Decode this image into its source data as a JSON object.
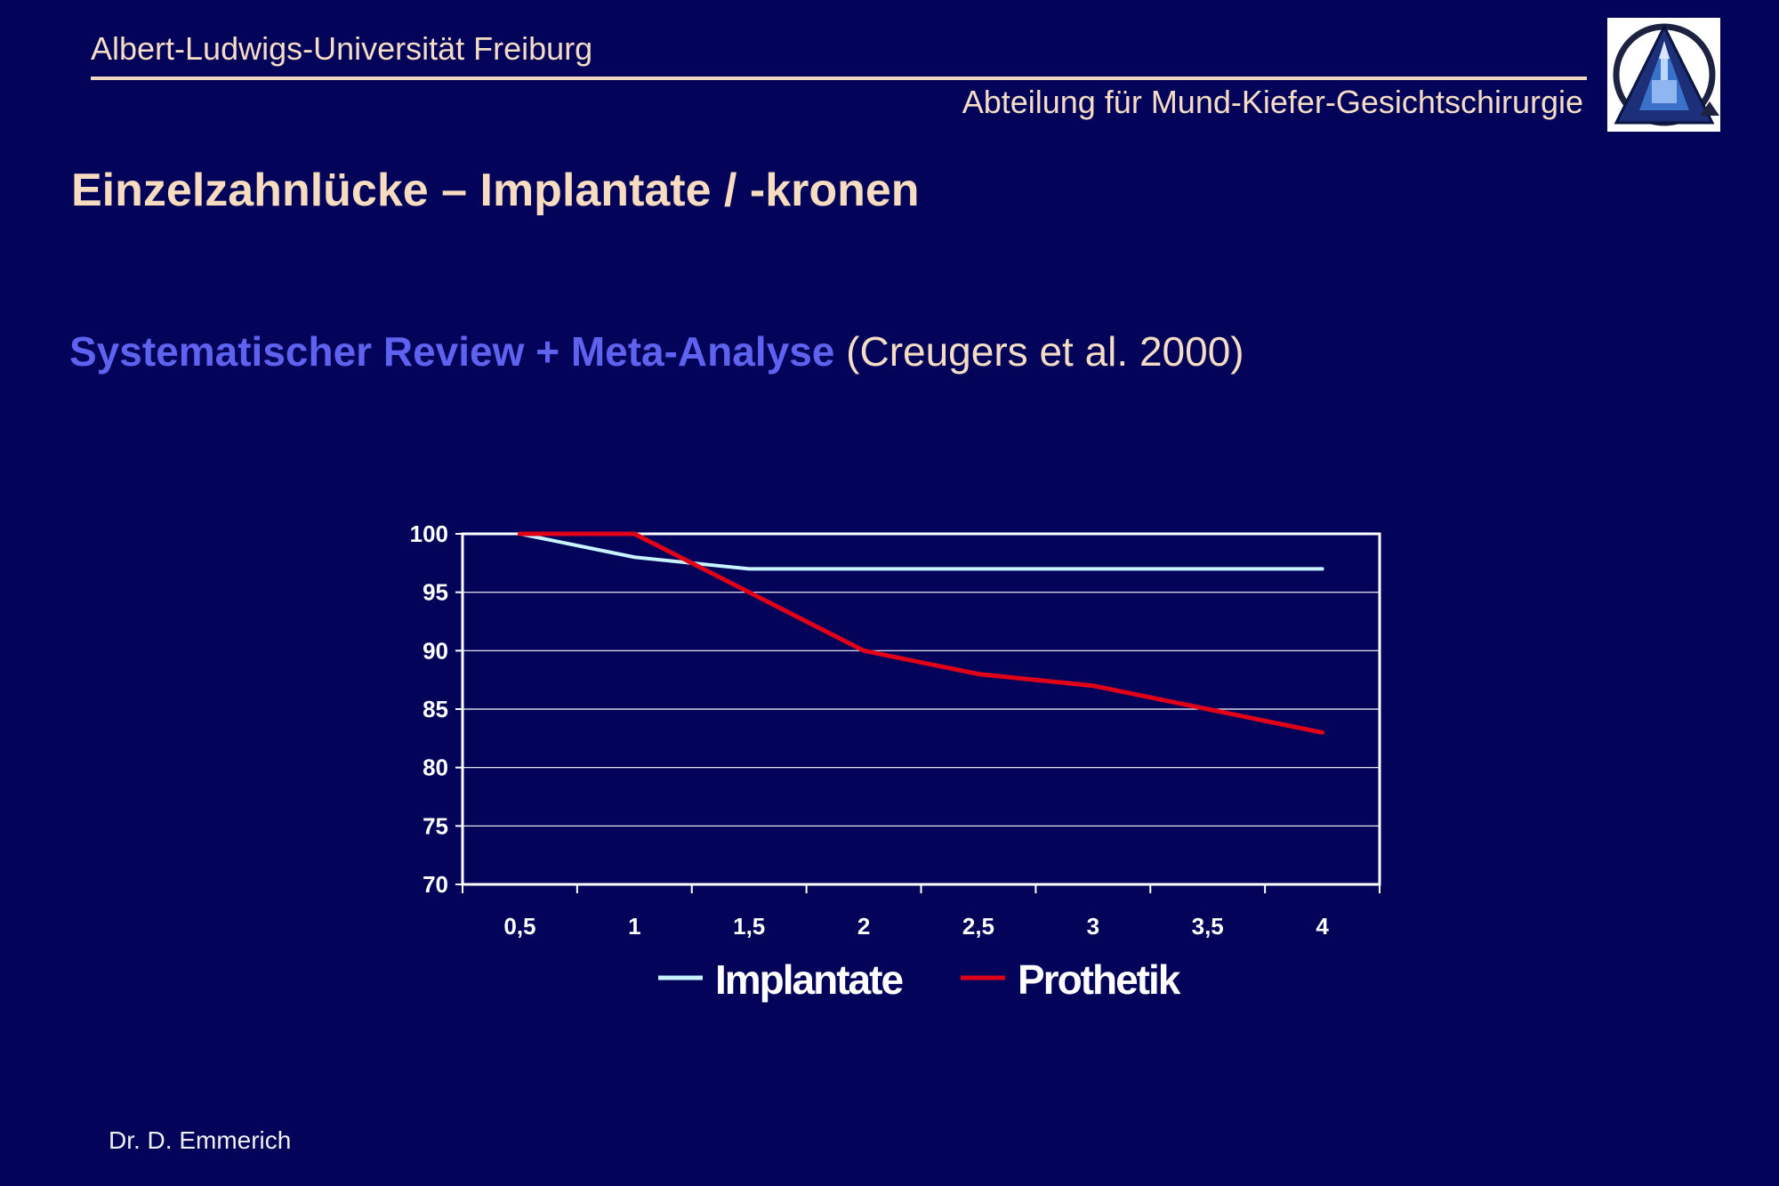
{
  "header": {
    "university": "Albert-Ludwigs-Universität Freiburg",
    "department": "Abteilung für Mund-Kiefer-Gesichtschirurgie"
  },
  "slide": {
    "title": "Einzelzahnlücke – Implantate / -kronen",
    "subtitle_main": "Systematischer Review + Meta-Analyse",
    "subtitle_citation": "(Creugers et al. 2000)"
  },
  "footer": {
    "author": "Dr. D. Emmerich"
  },
  "colors": {
    "background": "#03035a",
    "accent_text": "#f5dcc4",
    "subtitle_blue": "#5e62ee",
    "implantate_line": "#c8f4ff",
    "prothetik_line": "#e00018"
  },
  "logo": {
    "icon": "university-cathedral-logo-icon"
  },
  "chart_data": {
    "type": "line",
    "categories": [
      "0,5",
      "1",
      "1,5",
      "2",
      "2,5",
      "3",
      "3,5",
      "4"
    ],
    "series": [
      {
        "name": "Implantate",
        "values": [
          100,
          98,
          97,
          97,
          97,
          97,
          97,
          97
        ]
      },
      {
        "name": "Prothetik",
        "values": [
          100,
          100,
          95,
          90,
          88,
          87,
          85,
          83
        ]
      }
    ],
    "y_ticks": [
      "100",
      "95",
      "90",
      "85",
      "80",
      "75",
      "70"
    ],
    "ylim": [
      70,
      100
    ],
    "grid": true,
    "legend": "bottom"
  }
}
